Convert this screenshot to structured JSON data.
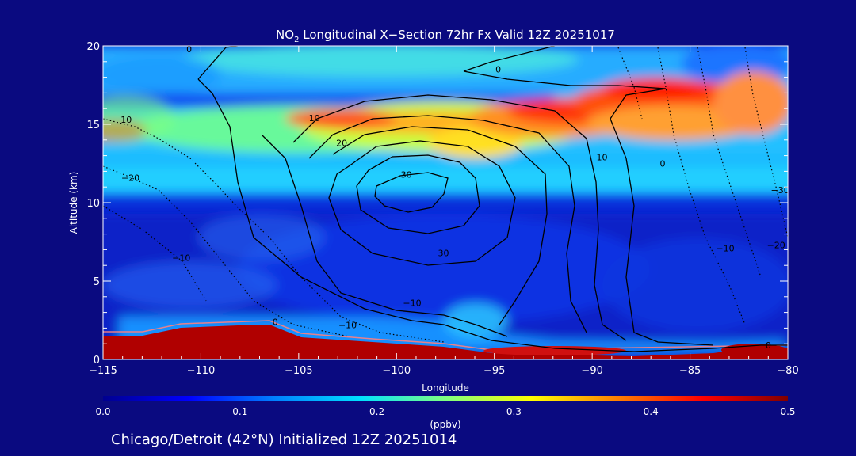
{
  "chart_data": {
    "type": "heatmap",
    "title_prefix": "NO",
    "title_sub": "2",
    "title_rest": " Longitudinal X−Section 72hr  Fx Valid 12Z 20251017",
    "xlabel": "Longitude",
    "ylabel": "Altitude (km)",
    "xlim": [
      -115,
      -80
    ],
    "ylim": [
      0,
      20
    ],
    "x_ticks": [
      -115,
      -110,
      -105,
      -100,
      -95,
      -90,
      -85,
      -80
    ],
    "x_tick_labels": [
      "−115",
      "−110",
      "−105",
      "−100",
      "−95",
      "−90",
      "−85",
      "−80"
    ],
    "y_ticks": [
      0,
      5,
      10,
      15,
      20
    ],
    "y_tick_labels": [
      "0",
      "5",
      "10",
      "15",
      "20"
    ],
    "colorbar": {
      "label": "(ppbv)",
      "range": [
        0.0,
        0.5
      ],
      "ticks": [
        0.0,
        0.1,
        0.2,
        0.3,
        0.4,
        0.5
      ],
      "tick_labels": [
        "0.0",
        "0.1",
        "0.2",
        "0.3",
        "0.4",
        "0.5"
      ],
      "colors": [
        "#00008f",
        "#0000ff",
        "#0080ff",
        "#00e0ff",
        "#80ff80",
        "#ffff00",
        "#ff8000",
        "#ff0000",
        "#800000"
      ]
    },
    "contour_labels": [
      {
        "text": "0",
        "lon": -110.6,
        "alt": 19.6
      },
      {
        "text": "0",
        "lon": -94.8,
        "alt": 18.3
      },
      {
        "text": "10",
        "lon": -104.2,
        "alt": 15.2
      },
      {
        "text": "20",
        "lon": -102.8,
        "alt": 13.6
      },
      {
        "text": "30",
        "lon": -99.5,
        "alt": 11.6
      },
      {
        "text": "10",
        "lon": -89.5,
        "alt": 12.7
      },
      {
        "text": "0",
        "lon": -86.4,
        "alt": 12.3
      },
      {
        "text": "−10",
        "lon": -114.0,
        "alt": 15.1
      },
      {
        "text": "−20",
        "lon": -113.6,
        "alt": 11.4
      },
      {
        "text": "−10",
        "lon": -111.0,
        "alt": 6.3
      },
      {
        "text": "30",
        "lon": -97.6,
        "alt": 6.6
      },
      {
        "text": "−10",
        "lon": -99.2,
        "alt": 3.4
      },
      {
        "text": "−10",
        "lon": -102.5,
        "alt": 2.0
      },
      {
        "text": "0",
        "lon": -106.2,
        "alt": 2.2
      },
      {
        "text": "−30",
        "lon": -80.4,
        "alt": 10.6
      },
      {
        "text": "−10",
        "lon": -83.2,
        "alt": 6.9
      },
      {
        "text": "−20",
        "lon": -80.6,
        "alt": 7.1
      },
      {
        "text": "0",
        "lon": -81.0,
        "alt": 0.7
      }
    ]
  },
  "footer": {
    "caption": "Chicago/Detroit (42°N) Initialized 12Z 20251014"
  }
}
